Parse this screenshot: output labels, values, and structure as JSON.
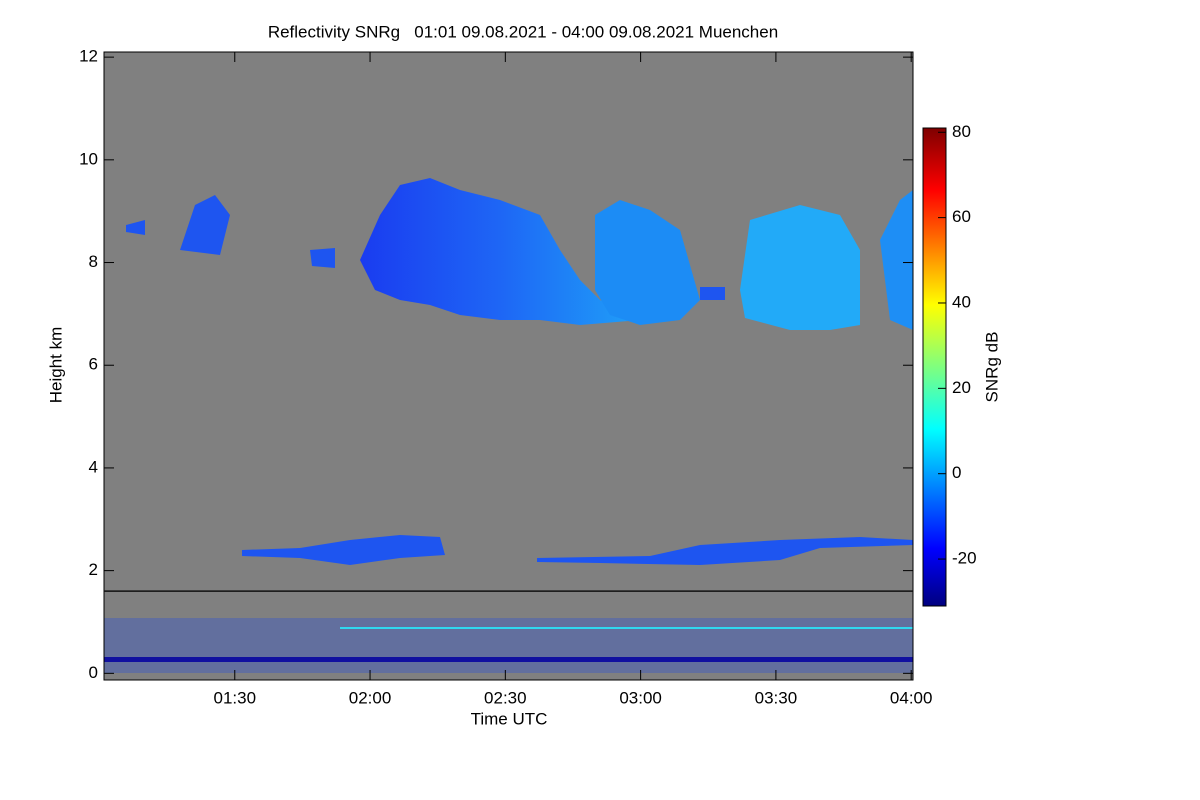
{
  "chart_data": {
    "type": "heatmap",
    "title": "Reflectivity SNRg   01:01 09.08.2021 - 04:00 09.08.2021 Muenchen",
    "x_label": "Time UTC",
    "y_label": "Height km",
    "colorbar_label": "SNRg dB",
    "xlim": [
      1.0167,
      4.0067
    ],
    "xticks": [
      {
        "value": 1.5,
        "label": "01:30"
      },
      {
        "value": 2.0,
        "label": "02:00"
      },
      {
        "value": 2.5,
        "label": "02:30"
      },
      {
        "value": 3.0,
        "label": "03:00"
      },
      {
        "value": 3.5,
        "label": "03:30"
      },
      {
        "value": 4.0,
        "label": "04:00"
      }
    ],
    "ylim": [
      -0.13,
      12.1
    ],
    "yticks": [
      0,
      2,
      4,
      6,
      8,
      10,
      12
    ],
    "clim": [
      -31,
      81
    ],
    "cticks": [
      -20,
      0,
      20,
      40,
      60,
      80
    ],
    "colormap": "jet",
    "background_color": "#808080",
    "reference_line": 1.6
  }
}
